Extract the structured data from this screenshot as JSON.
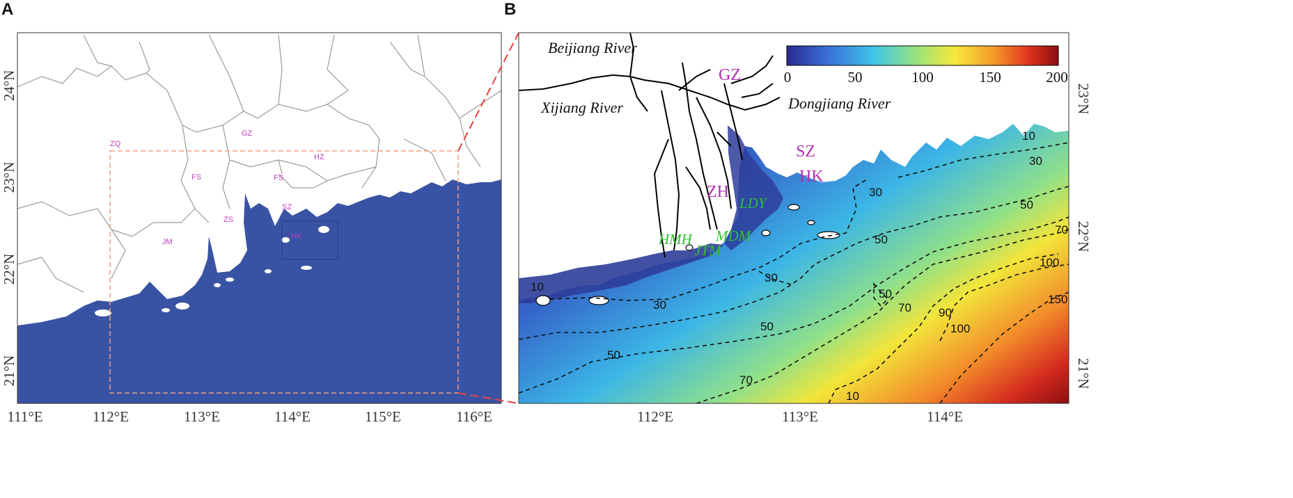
{
  "panel_a": {
    "letter": "A",
    "lon_ticks": [
      "111°E",
      "112°E",
      "113°E",
      "114°E",
      "115°E",
      "116°E"
    ],
    "lat_ticks": [
      "24°N",
      "23°N",
      "22°N",
      "21°N"
    ],
    "cities": [
      "ZQ",
      "GZ",
      "HZ",
      "FS",
      "FS",
      "SZ",
      "ZS",
      "JM",
      "HK"
    ],
    "colors": {
      "sea": "#3953a4",
      "land": "#ffffff",
      "boundary": "#9a9a9a",
      "study_box": "#f0a080"
    }
  },
  "panel_b": {
    "letter": "B",
    "lon_ticks": [
      "112°E",
      "113°E",
      "114°E"
    ],
    "lat_ticks": [
      "23°N",
      "22°N",
      "21°N"
    ],
    "cities": [
      "GZ",
      "SZ",
      "HK",
      "ZH"
    ],
    "rivers": [
      "Beijiang River",
      "Xijiang River",
      "Dongjiang River"
    ],
    "sites": [
      "LDY",
      "MDM",
      "HMH",
      "JTM"
    ],
    "colorbar": {
      "ticks": [
        "0",
        "50",
        "100",
        "150",
        "200"
      ],
      "colors": [
        "#2a2a8f",
        "#3a6fd8",
        "#3fc5e8",
        "#9be37a",
        "#f6e83a",
        "#f59b2a",
        "#e0341e",
        "#8a0f12"
      ]
    },
    "contour_labels": [
      "10",
      "10",
      "30",
      "30",
      "30",
      "30",
      "50",
      "50",
      "50",
      "50",
      "50",
      "70",
      "70",
      "70",
      "90",
      "100",
      "100",
      "150",
      "10"
    ]
  },
  "connector_color": "#e8413c"
}
